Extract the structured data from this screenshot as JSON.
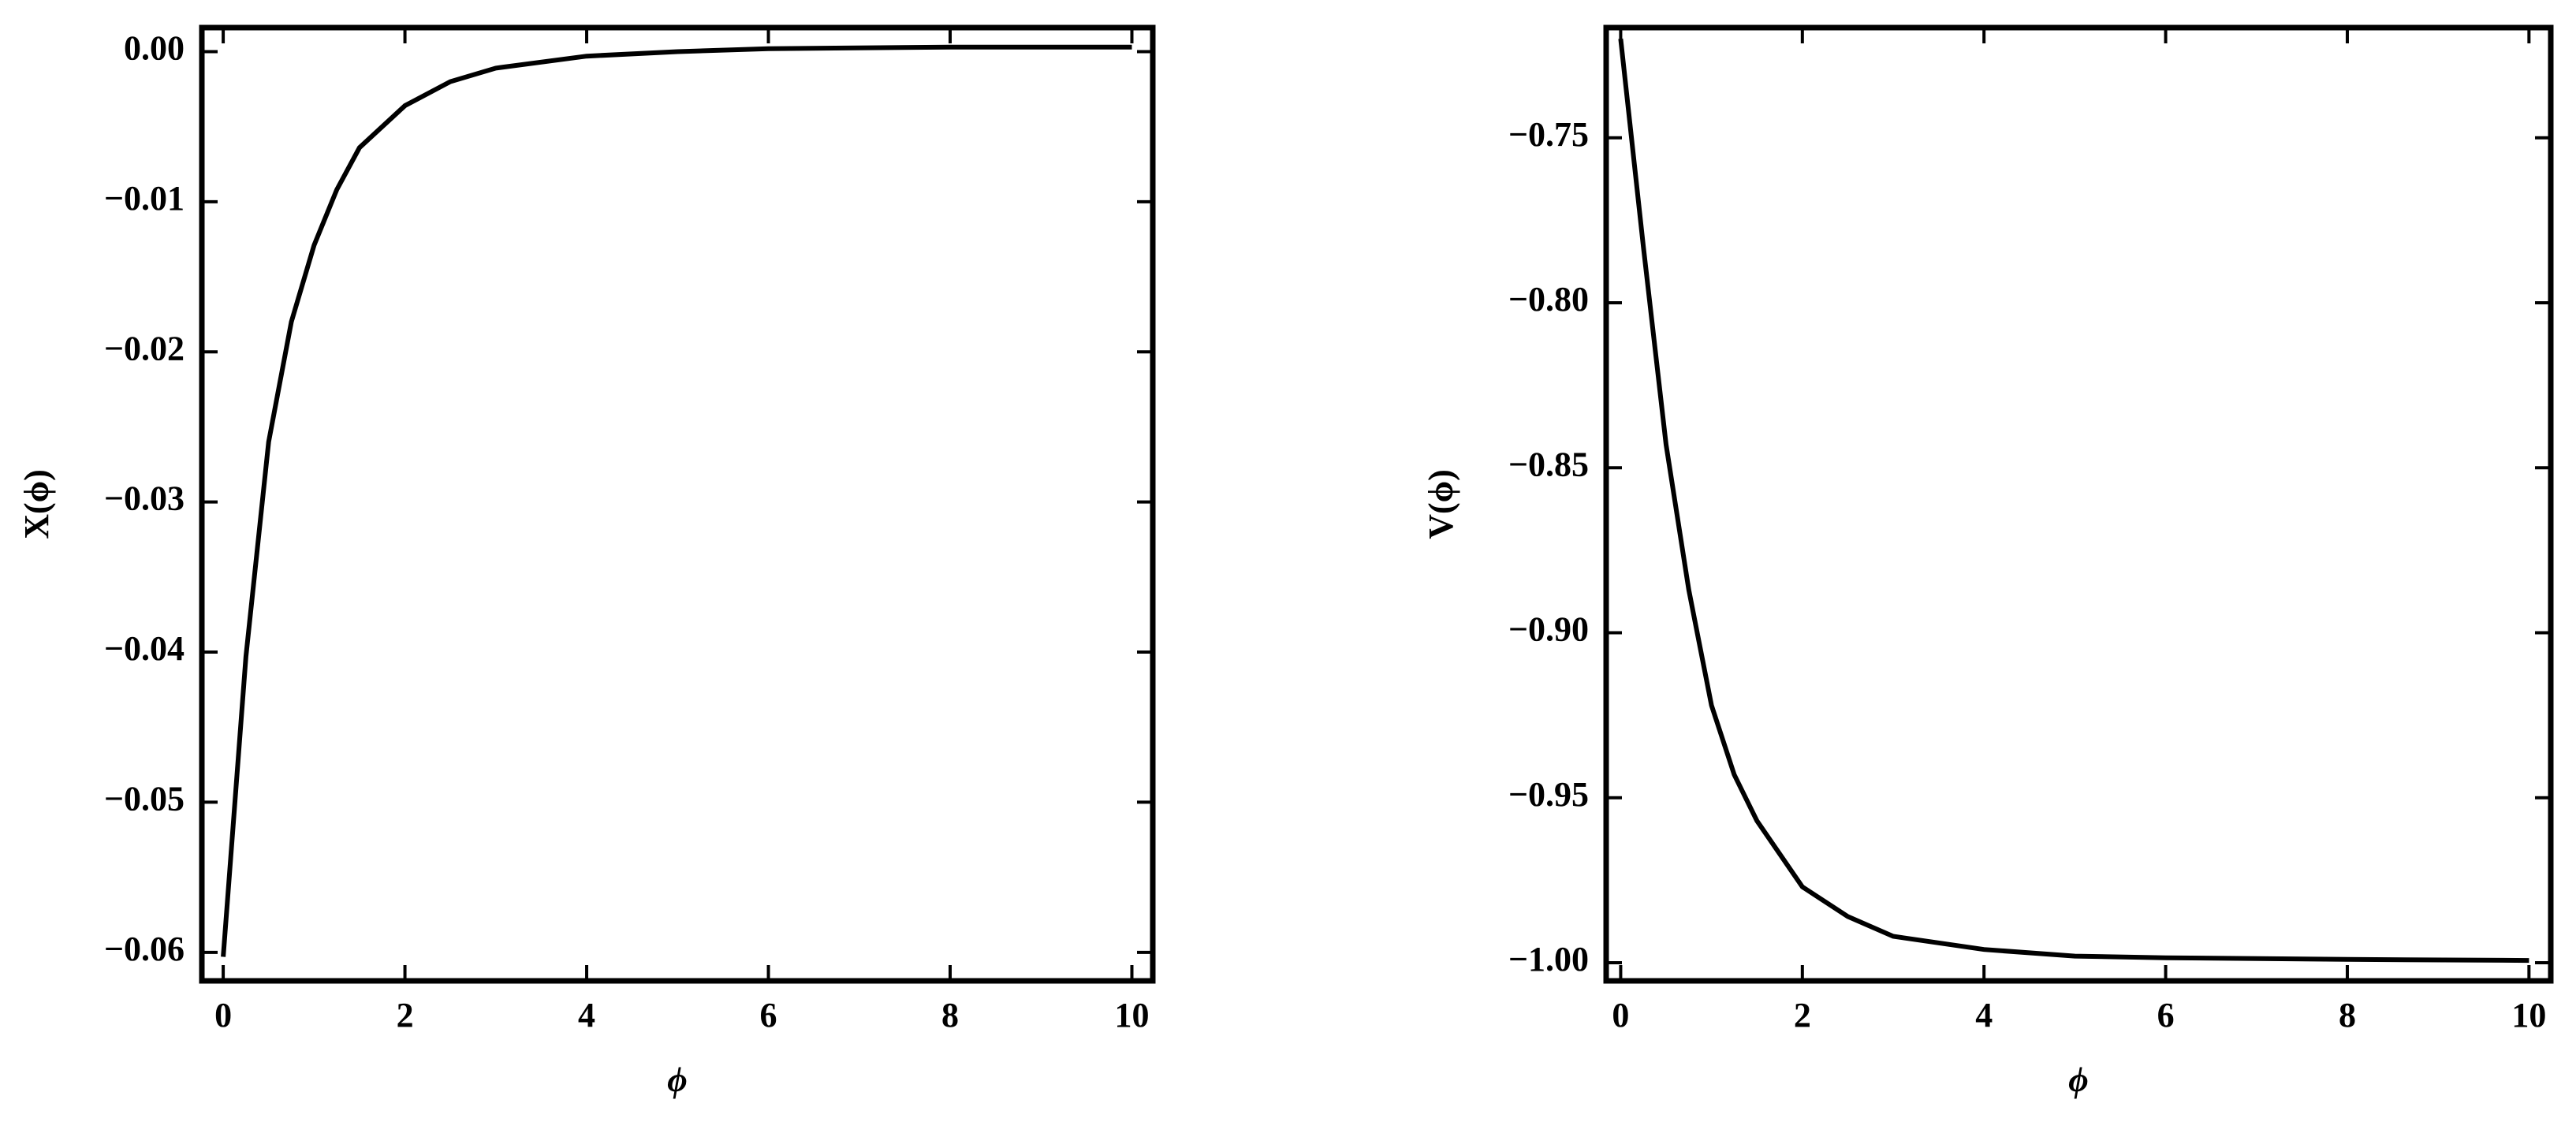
{
  "chart_data": [
    {
      "type": "line",
      "ylabel": "X(ϕ)",
      "xlabel": "ϕ",
      "color": "#000000",
      "x": [
        0,
        0.25,
        0.5,
        0.75,
        1,
        1.25,
        1.5,
        2,
        2.5,
        3,
        4,
        5,
        6,
        8,
        10
      ],
      "values": [
        -0.0603,
        -0.0403,
        -0.026,
        -0.018,
        -0.0129,
        -0.0092,
        -0.0064,
        -0.0036,
        -0.002,
        -0.0011,
        -0.0003,
        0,
        0.0002,
        0.0003,
        0.0003
      ],
      "xlim": [
        -0.235,
        10.23
      ],
      "ylim": [
        -0.0619,
        0.0016
      ],
      "xticks": [
        0,
        2,
        4,
        6,
        8,
        10
      ],
      "yticks": [
        {
          "value": 0,
          "label": "0.00"
        },
        {
          "value": -0.01,
          "label": "−0.01"
        },
        {
          "value": -0.02,
          "label": "−0.02"
        },
        {
          "value": -0.03,
          "label": "−0.03"
        },
        {
          "value": -0.04,
          "label": "−0.04"
        },
        {
          "value": -0.05,
          "label": "−0.05"
        },
        {
          "value": -0.06,
          "label": "−0.06"
        }
      ]
    },
    {
      "type": "line",
      "ylabel": "V(ϕ)",
      "xlabel": "ϕ",
      "color": "#000000",
      "x": [
        0,
        0.25,
        0.5,
        0.75,
        1,
        1.25,
        1.5,
        2,
        2.5,
        3,
        4,
        5,
        6,
        8,
        10
      ],
      "values": [
        -0.72,
        -0.783,
        -0.843,
        -0.887,
        -0.922,
        -0.943,
        -0.957,
        -0.977,
        -0.986,
        -0.992,
        -0.996,
        -0.998,
        -0.9985,
        -0.999,
        -0.9993
      ],
      "xlim": [
        -0.16,
        10.24
      ],
      "ylim": [
        -1.0055,
        -0.7166
      ],
      "xticks": [
        0,
        2,
        4,
        6,
        8,
        10
      ],
      "yticks": [
        {
          "value": -0.75,
          "label": "−0.75"
        },
        {
          "value": -0.8,
          "label": "−0.80"
        },
        {
          "value": -0.85,
          "label": "−0.85"
        },
        {
          "value": -0.9,
          "label": "−0.90"
        },
        {
          "value": -0.95,
          "label": "−0.95"
        },
        {
          "value": -1,
          "label": "−1.00"
        }
      ]
    }
  ]
}
